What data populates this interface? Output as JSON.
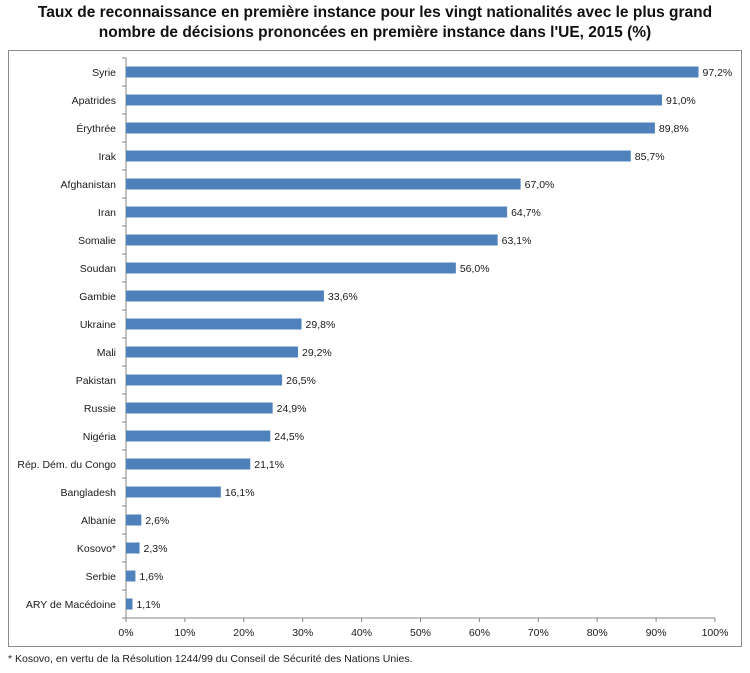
{
  "title": "Taux de reconnaissance en première instance pour les vingt nationalités avec le plus grand nombre de décisions prononcées en première instance dans l'UE, 2015 (%)",
  "footnote": "* Kosovo, en vertu de la Résolution 1244/99 du Conseil de Sécurité des Nations Unies.",
  "colors": {
    "bar": "#4f81bd",
    "axis": "#868686",
    "gridline": "#d9d9d9"
  },
  "chart_data": {
    "type": "bar",
    "orientation": "horizontal",
    "categories": [
      "Syrie",
      "Apatrides",
      "Érythrée",
      "Irak",
      "Afghanistan",
      "Iran",
      "Somalie",
      "Soudan",
      "Gambie",
      "Ukraine",
      "Mali",
      "Pakistan",
      "Russie",
      "Nigéria",
      "Rép. Dém. du Congo",
      "Bangladesh",
      "Albanie",
      "Kosovo*",
      "Serbie",
      "ARY de Macédoine"
    ],
    "values": [
      97.2,
      91.0,
      89.8,
      85.7,
      67.0,
      64.7,
      63.1,
      56.0,
      33.6,
      29.8,
      29.2,
      26.5,
      24.9,
      24.5,
      21.1,
      16.1,
      2.6,
      2.3,
      1.6,
      1.1
    ],
    "value_labels": [
      "97,2%",
      "91,0%",
      "89,8%",
      "85,7%",
      "67,0%",
      "64,7%",
      "63,1%",
      "56,0%",
      "33,6%",
      "29,8%",
      "29,2%",
      "26,5%",
      "24,9%",
      "24,5%",
      "21,1%",
      "16,1%",
      "2,6%",
      "2,3%",
      "1,6%",
      "1,1%"
    ],
    "xlim": [
      0,
      100
    ],
    "xticks": [
      0,
      10,
      20,
      30,
      40,
      50,
      60,
      70,
      80,
      90,
      100
    ],
    "xtick_labels": [
      "0%",
      "10%",
      "20%",
      "30%",
      "40%",
      "50%",
      "60%",
      "70%",
      "80%",
      "90%",
      "100%"
    ],
    "xlabel": "",
    "ylabel": "",
    "grid": false,
    "legend": "none"
  }
}
